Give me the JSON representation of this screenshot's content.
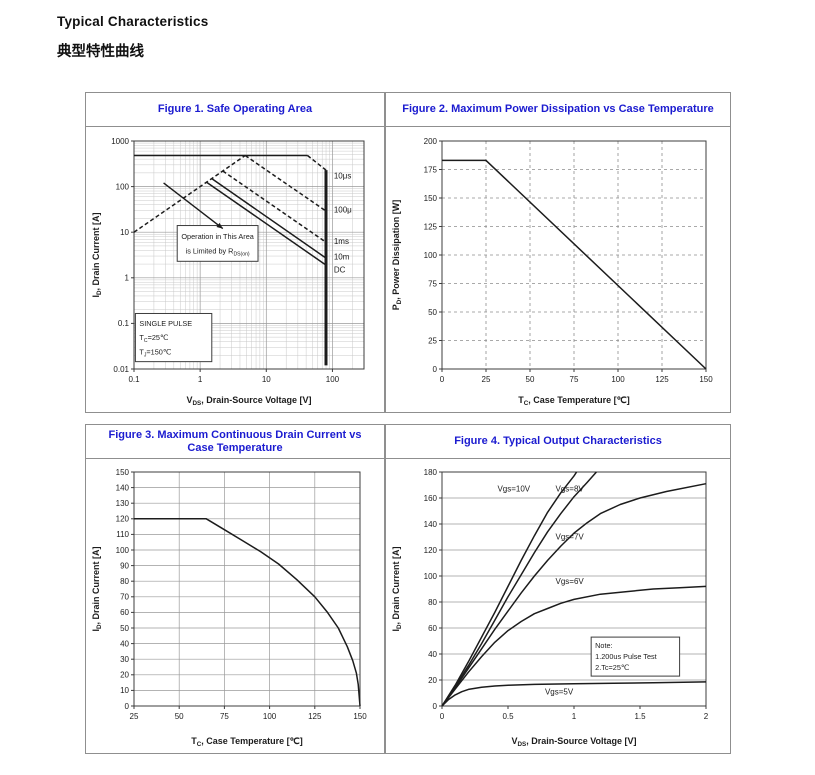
{
  "page": {
    "heading_en": "Typical Characteristics",
    "heading_zh": "典型特性曲线",
    "accent_color": "#1b1bd0"
  },
  "figures": [
    {
      "id": "fig1",
      "title": "Figure 1. Safe Operating Area"
    },
    {
      "id": "fig2",
      "title": "Figure 2. Maximum Power Dissipation vs Case Temperature"
    },
    {
      "id": "fig3",
      "title": "Figure 3. Maximum Continuous Drain Current vs Case Temperature"
    },
    {
      "id": "fig4",
      "title": "Figure 4. Typical Output Characteristics"
    }
  ],
  "chart_data": [
    {
      "id": "fig1",
      "type": "line",
      "title": "Figure 1. Safe Operating Area",
      "xlabel": [
        {
          "text": "V"
        },
        {
          "sub": "DS"
        },
        {
          "text": ", Drain-Source Voltage [V]"
        }
      ],
      "ylabel": [
        {
          "text": "I"
        },
        {
          "sub": "D"
        },
        {
          "text": ", Drain Current [A]"
        }
      ],
      "xscale": "log",
      "yscale": "log",
      "xlim": [
        0.1,
        300
      ],
      "ylim": [
        0.01,
        1000
      ],
      "xticks": {
        "values": [
          0.1,
          1,
          10,
          100
        ],
        "labels": [
          "0.1",
          "1",
          "10",
          "100"
        ]
      },
      "yticks": {
        "values": [
          0.01,
          0.1,
          1,
          10,
          100,
          1000
        ],
        "labels": [
          "0.01",
          "0.1",
          "1",
          "10",
          "100",
          "1000"
        ]
      },
      "grid": {
        "x": "solid",
        "y": "solid",
        "minor": true
      },
      "series": [
        {
          "name": "rdson-limit-line",
          "dash": true,
          "points": [
            [
              0.1,
              10
            ],
            [
              4.8,
              480
            ]
          ]
        },
        {
          "name": "peak-current-limit",
          "dash": false,
          "points": [
            [
              0.1,
              480
            ],
            [
              42,
              480
            ]
          ]
        },
        {
          "name": "pulse-10us",
          "dash": true,
          "points": [
            [
              42,
              480
            ],
            [
              80,
              230
            ]
          ],
          "label": "10μs",
          "label_at": [
            105,
            150
          ]
        },
        {
          "name": "pulse-100us",
          "dash": true,
          "points": [
            [
              4.8,
              480
            ],
            [
              80,
              29
            ]
          ],
          "label": "100μ",
          "label_at": [
            105,
            27
          ]
        },
        {
          "name": "pulse-1ms",
          "dash": true,
          "points": [
            [
              2.2,
              220
            ],
            [
              80,
              6
            ]
          ],
          "label": "1ms",
          "label_at": [
            105,
            5.5
          ]
        },
        {
          "name": "pulse-10ms",
          "dash": false,
          "points": [
            [
              1.5,
              150
            ],
            [
              80,
              2.7
            ]
          ],
          "label": "10m",
          "label_at": [
            105,
            2.5
          ]
        },
        {
          "name": "dc-line",
          "dash": false,
          "points": [
            [
              1.25,
              125
            ],
            [
              80,
              1.9
            ]
          ],
          "label": "DC",
          "label_at": [
            105,
            1.3
          ]
        },
        {
          "name": "vds-max-line",
          "dash": false,
          "thick": true,
          "points": [
            [
              80,
              230
            ],
            [
              80,
              0.012
            ]
          ]
        }
      ],
      "annotations": [
        {
          "kind": "textbox",
          "name": "operation-area-note",
          "x0": 0.45,
          "y0": 14,
          "x1": 7.5,
          "y1": 2.3,
          "align": "center",
          "lines": [
            [
              {
                "text": "Operation in This Area"
              }
            ],
            [
              {
                "text": "is Limited by R"
              },
              {
                "sub": "DS(on)"
              }
            ]
          ]
        },
        {
          "kind": "textbox",
          "name": "single-pulse-note",
          "x0": 0.105,
          "y0": 0.165,
          "x1": 1.5,
          "y1": 0.0145,
          "align": "left",
          "lines": [
            [
              {
                "text": "SINGLE PULSE"
              }
            ],
            [
              {
                "text": "T"
              },
              {
                "sub": "C"
              },
              {
                "text": "=25℃"
              }
            ],
            [
              {
                "text": "T"
              },
              {
                "sub": "J"
              },
              {
                "text": "=150℃"
              }
            ]
          ]
        },
        {
          "kind": "arrow",
          "name": "annotation-arrow",
          "from": [
            0.28,
            120
          ],
          "to": [
            2.2,
            12
          ]
        }
      ]
    },
    {
      "id": "fig2",
      "type": "line",
      "title": "Figure 2. Maximum Power Dissipation vs Case Temperature",
      "xlabel": [
        {
          "text": "T"
        },
        {
          "sub": "C"
        },
        {
          "text": ", Case Temperature [℃]"
        }
      ],
      "ylabel": [
        {
          "text": "P"
        },
        {
          "sub": "D"
        },
        {
          "text": ", Power Dissipation [W]"
        }
      ],
      "xscale": "linear",
      "yscale": "linear",
      "xlim": [
        0,
        150
      ],
      "ylim": [
        0,
        200
      ],
      "xticks": {
        "values": [
          0,
          25,
          50,
          75,
          100,
          125,
          150
        ],
        "labels": [
          "0",
          "25",
          "50",
          "75",
          "100",
          "125",
          "150"
        ]
      },
      "yticks": {
        "values": [
          0,
          25,
          50,
          75,
          100,
          125,
          150,
          175,
          200
        ],
        "labels": [
          "0",
          "25",
          "50",
          "75",
          "100",
          "125",
          "150",
          "175",
          "200"
        ]
      },
      "grid": {
        "x": "dashed",
        "y": "dashed",
        "minor": false
      },
      "series": [
        {
          "name": "power-derating",
          "dash": false,
          "points": [
            [
              0,
              183
            ],
            [
              25,
              183
            ],
            [
              150,
              0
            ]
          ]
        }
      ],
      "annotations": []
    },
    {
      "id": "fig3",
      "type": "line",
      "title": "Figure 3. Maximum Continuous Drain Current vs Case Temperature",
      "xlabel": [
        {
          "text": "T"
        },
        {
          "sub": "C"
        },
        {
          "text": ", Case Temperature [℃]"
        }
      ],
      "ylabel": [
        {
          "text": "I"
        },
        {
          "sub": "D"
        },
        {
          "text": ", Drain Current [A]"
        }
      ],
      "xscale": "linear",
      "yscale": "linear",
      "xlim": [
        25,
        150
      ],
      "ylim": [
        0,
        150
      ],
      "xticks": {
        "values": [
          25,
          50,
          75,
          100,
          125,
          150
        ],
        "labels": [
          "25",
          "50",
          "75",
          "100",
          "125",
          "150"
        ]
      },
      "yticks": {
        "values": [
          0,
          10,
          20,
          30,
          40,
          50,
          60,
          70,
          80,
          90,
          100,
          110,
          120,
          130,
          140,
          150
        ],
        "labels": [
          "0",
          "10",
          "20",
          "30",
          "40",
          "50",
          "60",
          "70",
          "80",
          "90",
          "100",
          "110",
          "120",
          "130",
          "140",
          "150"
        ]
      },
      "grid": {
        "x": "solid",
        "y": "solid",
        "minor": false
      },
      "series": [
        {
          "name": "current-derating",
          "dash": false,
          "points": [
            [
              25,
              120
            ],
            [
              65,
              120
            ],
            [
              75,
              113
            ],
            [
              85,
              106
            ],
            [
              95,
              99
            ],
            [
              105,
              91
            ],
            [
              115,
              81
            ],
            [
              125,
              70
            ],
            [
              132,
              60
            ],
            [
              138,
              50
            ],
            [
              143,
              38
            ],
            [
              146,
              29
            ],
            [
              148,
              21
            ],
            [
              149,
              14
            ],
            [
              150,
              0
            ]
          ]
        }
      ],
      "annotations": []
    },
    {
      "id": "fig4",
      "type": "line",
      "title": "Figure 4. Typical Output Characteristics",
      "xlabel": [
        {
          "text": "V"
        },
        {
          "sub": "DS"
        },
        {
          "text": ", Drain-Source Voltage [V]"
        }
      ],
      "ylabel": [
        {
          "text": "I"
        },
        {
          "sub": "D"
        },
        {
          "text": ", Drain Current [A]"
        }
      ],
      "xscale": "linear",
      "yscale": "linear",
      "xlim": [
        0,
        2
      ],
      "ylim": [
        0,
        180
      ],
      "xticks": {
        "values": [
          0,
          0.5,
          1,
          1.5,
          2
        ],
        "labels": [
          "0",
          "0.5",
          "1",
          "1.5",
          "2"
        ]
      },
      "yticks": {
        "values": [
          0,
          20,
          40,
          60,
          80,
          100,
          120,
          140,
          160,
          180
        ],
        "labels": [
          "0",
          "20",
          "40",
          "60",
          "80",
          "100",
          "120",
          "140",
          "160",
          "180"
        ]
      },
      "grid": {
        "x": "none",
        "y": "solid",
        "minor": false
      },
      "series": [
        {
          "name": "vgs-10v",
          "dash": false,
          "label": "Vgs=10V",
          "label_at": [
            0.42,
            165
          ],
          "points": [
            [
              0,
              0
            ],
            [
              0.1,
              16
            ],
            [
              0.2,
              34
            ],
            [
              0.3,
              53
            ],
            [
              0.4,
              72
            ],
            [
              0.5,
              92
            ],
            [
              0.6,
              112
            ],
            [
              0.7,
              131
            ],
            [
              0.8,
              149
            ],
            [
              0.9,
              164
            ],
            [
              1.0,
              177
            ],
            [
              1.02,
              180
            ]
          ]
        },
        {
          "name": "vgs-8v",
          "dash": false,
          "label": "Vgs=8V",
          "label_at": [
            0.86,
            165
          ],
          "points": [
            [
              0,
              0
            ],
            [
              0.1,
              15
            ],
            [
              0.2,
              31
            ],
            [
              0.3,
              48
            ],
            [
              0.4,
              66
            ],
            [
              0.5,
              84
            ],
            [
              0.6,
              101
            ],
            [
              0.7,
              118
            ],
            [
              0.8,
              134
            ],
            [
              0.9,
              148
            ],
            [
              1.0,
              161
            ],
            [
              1.1,
              172
            ],
            [
              1.17,
              180
            ]
          ]
        },
        {
          "name": "vgs-7v",
          "dash": false,
          "label": "Vgs=7V",
          "label_at": [
            0.86,
            128
          ],
          "points": [
            [
              0,
              0
            ],
            [
              0.1,
              14
            ],
            [
              0.2,
              29
            ],
            [
              0.3,
              44
            ],
            [
              0.4,
              59
            ],
            [
              0.5,
              73
            ],
            [
              0.6,
              87
            ],
            [
              0.7,
              100
            ],
            [
              0.8,
              112
            ],
            [
              0.9,
              123
            ],
            [
              1.0,
              133
            ],
            [
              1.1,
              141
            ],
            [
              1.2,
              148
            ],
            [
              1.35,
              155
            ],
            [
              1.5,
              160
            ],
            [
              1.7,
              165
            ],
            [
              2,
              171
            ]
          ]
        },
        {
          "name": "vgs-6v",
          "dash": false,
          "label": "Vgs=6V",
          "label_at": [
            0.86,
            94
          ],
          "points": [
            [
              0,
              0
            ],
            [
              0.1,
              13
            ],
            [
              0.2,
              26
            ],
            [
              0.3,
              38
            ],
            [
              0.4,
              49
            ],
            [
              0.5,
              58
            ],
            [
              0.6,
              65
            ],
            [
              0.7,
              71
            ],
            [
              0.8,
              75
            ],
            [
              0.9,
              79
            ],
            [
              1.0,
              82
            ],
            [
              1.2,
              86
            ],
            [
              1.4,
              88
            ],
            [
              1.6,
              90
            ],
            [
              1.8,
              91
            ],
            [
              2,
              92
            ]
          ]
        },
        {
          "name": "vgs-5v",
          "dash": false,
          "label": "Vgs=5V",
          "label_at": [
            0.78,
            9
          ],
          "points": [
            [
              0,
              0
            ],
            [
              0.05,
              5
            ],
            [
              0.1,
              8.5
            ],
            [
              0.15,
              11
            ],
            [
              0.2,
              12.8
            ],
            [
              0.3,
              14.5
            ],
            [
              0.4,
              15.4
            ],
            [
              0.5,
              16
            ],
            [
              0.7,
              16.6
            ],
            [
              1.0,
              17.1
            ],
            [
              1.3,
              17.5
            ],
            [
              1.6,
              17.9
            ],
            [
              2,
              18.5
            ]
          ]
        }
      ],
      "annotations": [
        {
          "kind": "textbox",
          "name": "pulse-test-note",
          "x0": 1.13,
          "y0": 53,
          "x1": 1.8,
          "y1": 23,
          "align": "left",
          "lines": [
            [
              {
                "text": "Note:"
              }
            ],
            [
              {
                "text": "1.200us Pulse Test"
              }
            ],
            [
              {
                "text": "2.Tc=25℃"
              }
            ]
          ]
        }
      ]
    }
  ]
}
